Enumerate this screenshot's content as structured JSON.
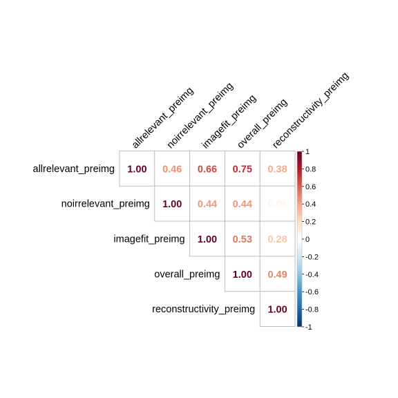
{
  "chart_data": {
    "type": "heatmap",
    "variables": [
      "allrelevant_preimg",
      "noirrelevant_preimg",
      "imagefit_preimg",
      "overall_preimg",
      "reconstructivity_preimg"
    ],
    "matrix": [
      [
        1.0,
        0.46,
        0.66,
        0.75,
        0.38
      ],
      [
        null,
        1.0,
        0.44,
        0.44,
        0.06
      ],
      [
        null,
        null,
        1.0,
        0.53,
        0.28
      ],
      [
        null,
        null,
        null,
        1.0,
        0.49
      ],
      [
        null,
        null,
        null,
        null,
        1.0
      ]
    ],
    "value_labels": [
      [
        "1.00",
        "0.46",
        "0.66",
        "0.75",
        "0.38"
      ],
      [
        "",
        "1.00",
        "0.44",
        "0.44",
        "0.06"
      ],
      [
        "",
        "",
        "1.00",
        "0.53",
        "0.28"
      ],
      [
        "",
        "",
        "",
        "1.00",
        "0.49"
      ],
      [
        "",
        "",
        "",
        "",
        "1.00"
      ]
    ],
    "triangle": "upper",
    "colorbar": {
      "range": [
        -1,
        1
      ],
      "ticks": [
        "1",
        "0.8",
        "0.6",
        "0.4",
        "0.2",
        "0",
        "-0.2",
        "-0.4",
        "-0.6",
        "-0.8",
        "-1"
      ],
      "tick_values": [
        1,
        0.8,
        0.6,
        0.4,
        0.2,
        0,
        -0.2,
        -0.4,
        -0.6,
        -0.8,
        -1
      ],
      "colors": [
        "#67001F",
        "#B2182B",
        "#D6604D",
        "#F4A582",
        "#FDDBC7",
        "#FFFFFF",
        "#D1E5F0",
        "#92C5DE",
        "#4393C3",
        "#2166AC",
        "#053061"
      ]
    },
    "grid_color": "#bebebe"
  }
}
